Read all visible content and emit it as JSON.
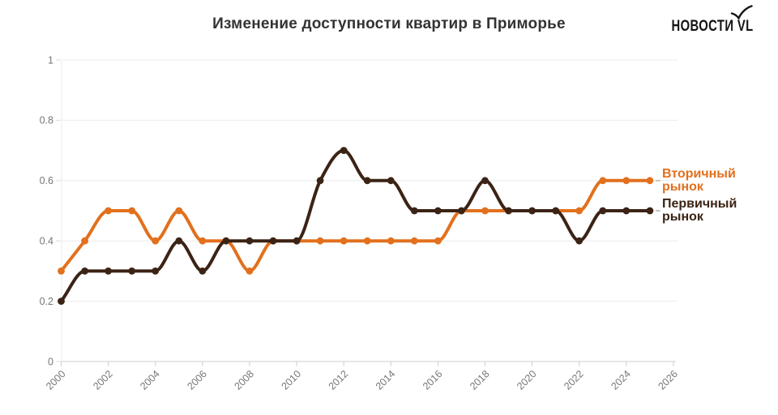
{
  "title": "Изменение доступности квартир в Приморье",
  "logo": {
    "text": "НОВОСТИ VL",
    "icon": "bird-check-icon"
  },
  "legend": {
    "items": [
      {
        "label": "Вторичный рынок",
        "lines": [
          "Вторичный",
          "рынок"
        ]
      },
      {
        "label": "Первичный рынок",
        "lines": [
          "Первичный",
          "рынок"
        ]
      }
    ]
  },
  "colors": {
    "secondary_market": "#E2701D",
    "primary_market": "#3B2315",
    "title_text": "#333333",
    "axis_label": "#767676",
    "gridline": "#EBEBEB",
    "axis_line": "#CFCFCF",
    "background": "#FFFFFF"
  },
  "chart_data": {
    "type": "line",
    "title": "Изменение доступности квартир в Приморье",
    "xlabel": "",
    "ylabel": "",
    "x": [
      2000,
      2001,
      2002,
      2003,
      2004,
      2005,
      2006,
      2007,
      2008,
      2009,
      2010,
      2011,
      2012,
      2013,
      2014,
      2015,
      2016,
      2017,
      2018,
      2019,
      2020,
      2021,
      2022,
      2023,
      2024,
      2025
    ],
    "series": [
      {
        "name": "Вторичный рынок",
        "color": "#E2701D",
        "values": [
          0.3,
          0.4,
          0.5,
          0.5,
          0.4,
          0.5,
          0.4,
          0.4,
          0.3,
          0.4,
          0.4,
          0.4,
          0.4,
          0.4,
          0.4,
          0.4,
          0.4,
          0.5,
          0.5,
          0.5,
          0.5,
          0.5,
          0.5,
          0.6,
          0.6,
          0.6
        ]
      },
      {
        "name": "Первичный рынок",
        "color": "#3B2315",
        "values": [
          0.2,
          0.3,
          0.3,
          0.3,
          0.3,
          0.4,
          0.3,
          0.4,
          0.4,
          0.4,
          0.4,
          0.6,
          0.7,
          0.6,
          0.6,
          0.5,
          0.5,
          0.5,
          0.6,
          0.5,
          0.5,
          0.5,
          0.4,
          0.5,
          0.5,
          0.5
        ]
      }
    ],
    "xlim": [
      2000,
      2026
    ],
    "ylim": [
      0,
      1
    ],
    "xticks": [
      2000,
      2002,
      2004,
      2006,
      2008,
      2010,
      2012,
      2014,
      2016,
      2018,
      2020,
      2022,
      2024,
      2026
    ],
    "yticks": [
      0,
      0.2,
      0.4,
      0.6,
      0.8,
      1
    ],
    "ytick_labels": [
      "0",
      "0.2",
      "0.4",
      "0.6",
      "0.8",
      "1"
    ],
    "grid": "horizontal",
    "legend_position": "right",
    "curve": "smooth",
    "markers": "dots"
  }
}
